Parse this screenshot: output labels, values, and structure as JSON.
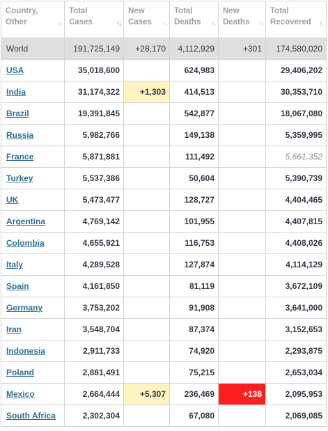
{
  "headers": [
    {
      "line1": "Country,",
      "line2": "Other",
      "sort_icon": "sort-icon"
    },
    {
      "line1": "Total",
      "line2": "Cases",
      "sort_icon": "sort-descending-icon"
    },
    {
      "line1": "New",
      "line2": "Cases",
      "sort_icon": "sort-icon"
    },
    {
      "line1": "Total",
      "line2": "Deaths",
      "sort_icon": "sort-icon"
    },
    {
      "line1": "New",
      "line2": "Deaths",
      "sort_icon": "sort-icon"
    },
    {
      "line1": "Total",
      "line2": "Recovered",
      "sort_icon": "sort-icon"
    }
  ],
  "world": {
    "country": "World",
    "total_cases": "191,725,149",
    "new_cases": "+28,170",
    "total_deaths": "4,112,929",
    "new_deaths": "+301",
    "total_recovered": "174,580,020"
  },
  "rows": [
    {
      "country": "USA",
      "total_cases": "35,018,600",
      "new_cases": "",
      "total_deaths": "624,983",
      "new_deaths": "",
      "total_recovered": "29,406,202"
    },
    {
      "country": "India",
      "total_cases": "31,174,322",
      "new_cases": "+1,303",
      "total_deaths": "414,513",
      "new_deaths": "",
      "total_recovered": "30,353,710"
    },
    {
      "country": "Brazil",
      "total_cases": "19,391,845",
      "new_cases": "",
      "total_deaths": "542,877",
      "new_deaths": "",
      "total_recovered": "18,067,080"
    },
    {
      "country": "Russia",
      "total_cases": "5,982,766",
      "new_cases": "",
      "total_deaths": "149,138",
      "new_deaths": "",
      "total_recovered": "5,359,995"
    },
    {
      "country": "France",
      "total_cases": "5,871,881",
      "new_cases": "",
      "total_deaths": "111,492",
      "new_deaths": "",
      "total_recovered": "5,661,352",
      "recovered_estimated": true
    },
    {
      "country": "Turkey",
      "total_cases": "5,537,386",
      "new_cases": "",
      "total_deaths": "50,604",
      "new_deaths": "",
      "total_recovered": "5,390,739"
    },
    {
      "country": "UK",
      "total_cases": "5,473,477",
      "new_cases": "",
      "total_deaths": "128,727",
      "new_deaths": "",
      "total_recovered": "4,404,465"
    },
    {
      "country": "Argentina",
      "total_cases": "4,769,142",
      "new_cases": "",
      "total_deaths": "101,955",
      "new_deaths": "",
      "total_recovered": "4,407,815"
    },
    {
      "country": "Colombia",
      "total_cases": "4,655,921",
      "new_cases": "",
      "total_deaths": "116,753",
      "new_deaths": "",
      "total_recovered": "4,408,026"
    },
    {
      "country": "Italy",
      "total_cases": "4,289,528",
      "new_cases": "",
      "total_deaths": "127,874",
      "new_deaths": "",
      "total_recovered": "4,114,129"
    },
    {
      "country": "Spain",
      "total_cases": "4,161,850",
      "new_cases": "",
      "total_deaths": "81,119",
      "new_deaths": "",
      "total_recovered": "3,672,109"
    },
    {
      "country": "Germany",
      "total_cases": "3,753,202",
      "new_cases": "",
      "total_deaths": "91,908",
      "new_deaths": "",
      "total_recovered": "3,641,000"
    },
    {
      "country": "Iran",
      "total_cases": "3,548,704",
      "new_cases": "",
      "total_deaths": "87,374",
      "new_deaths": "",
      "total_recovered": "3,152,653"
    },
    {
      "country": "Indonesia",
      "total_cases": "2,911,733",
      "new_cases": "",
      "total_deaths": "74,920",
      "new_deaths": "",
      "total_recovered": "2,293,875"
    },
    {
      "country": "Poland",
      "total_cases": "2,881,491",
      "new_cases": "",
      "total_deaths": "75,215",
      "new_deaths": "",
      "total_recovered": "2,653,034"
    },
    {
      "country": "Mexico",
      "total_cases": "2,664,444",
      "new_cases": "+5,307",
      "total_deaths": "236,469",
      "new_deaths": "+138",
      "total_recovered": "2,095,953"
    },
    {
      "country": "South Africa",
      "total_cases": "2,302,304",
      "new_cases": "",
      "total_deaths": "67,080",
      "new_deaths": "",
      "total_recovered": "2,069,085"
    }
  ],
  "colors": {
    "new_cases_highlight": "#fff3c0",
    "new_deaths_highlight": "#ff1f1f",
    "world_row": "#dfdfdf",
    "link": "#31708f"
  }
}
